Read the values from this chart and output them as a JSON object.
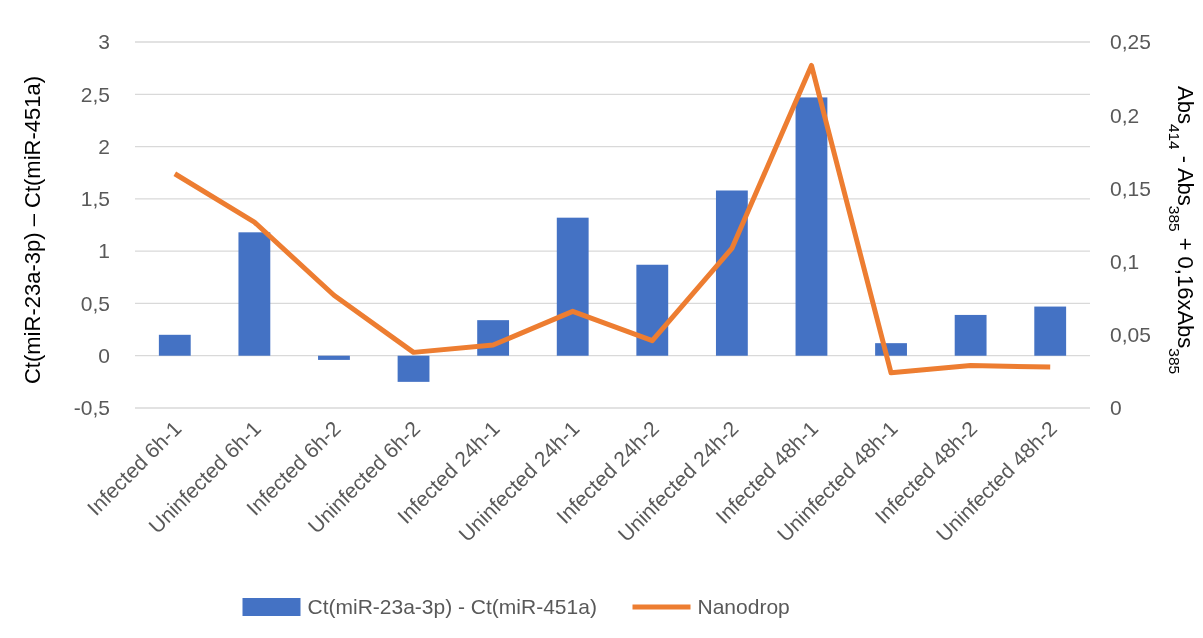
{
  "chart_data": {
    "type": "bar",
    "ylabel": "Ct(miR-23a-3p) – Ct(miR-451a)",
    "y2label": "Abs$_{414}$ - Abs$_{385}$ + 0,16xAbs$_{385}$",
    "categories": [
      "Infected 6h-1",
      "Uninfected 6h-1",
      "Infected 6h-2",
      "Uninfected 6h-2",
      "Infected 24h-1",
      "Uninfected 24h-1",
      "Infected 24h-2",
      "Uninfected 24h-2",
      "Infected 48h-1",
      "Uninfected 48h-1",
      "Infected 48h-2",
      "Uninfected 48h-2"
    ],
    "series": [
      {
        "name": "Ct(miR-23a-3p) - Ct(miR-451a)",
        "color": "#4472c4",
        "values": [
          0.2,
          1.18,
          -0.04,
          -0.25,
          0.34,
          1.32,
          0.87,
          1.58,
          2.47,
          0.12,
          0.39,
          0.47
        ]
      },
      {
        "name": "Nanodrop",
        "type": "line",
        "axis": "y2",
        "color": "#ed7d31",
        "values": [
          0.16,
          0.127,
          0.077,
          0.038,
          0.043,
          0.066,
          0.046,
          0.109,
          0.234,
          0.024,
          0.029,
          0.028
        ]
      }
    ],
    "ylim": [
      -0.5,
      3
    ],
    "yticks": [
      {
        "value": -0.5,
        "label": "-0,5"
      },
      0,
      {
        "value": 0.5,
        "label": "0,5"
      },
      1,
      {
        "value": 1.5,
        "label": "1,5"
      },
      2,
      {
        "value": 2.5,
        "label": "2,5"
      },
      3
    ],
    "y2lim": [
      0,
      0.25
    ],
    "y2ticks": [
      0,
      {
        "value": 0.05,
        "label": "0,05"
      },
      {
        "value": 0.1,
        "label": "0,1"
      },
      {
        "value": 0.15,
        "label": "0,15"
      },
      {
        "value": 0.2,
        "label": "0,2"
      },
      {
        "value": 0.25,
        "label": "0,25"
      }
    ],
    "grid": "y",
    "legend": "bottom",
    "marker": "none"
  }
}
